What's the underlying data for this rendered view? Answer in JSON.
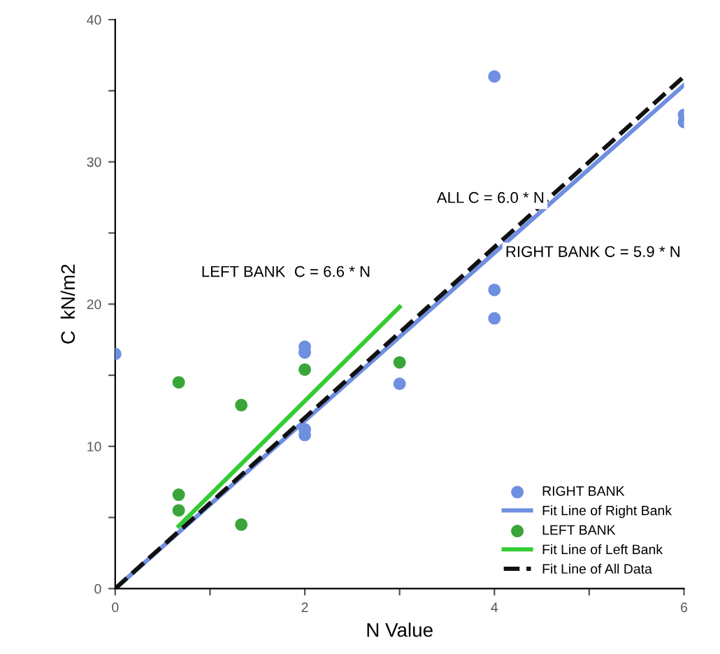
{
  "chart_data": {
    "type": "scatter",
    "xlabel": "N Value",
    "ylabel": "C  kN/m2",
    "xlim": [
      0,
      6
    ],
    "ylim": [
      0,
      40
    ],
    "xticks": [
      0,
      {
        "value": 1,
        "label": null
      },
      2,
      {
        "value": 3,
        "label": null
      },
      4,
      {
        "value": 5,
        "label": null
      },
      6
    ],
    "yticks": [
      0,
      {
        "value": 5,
        "label": null
      },
      10,
      {
        "value": 15,
        "label": null
      },
      20,
      {
        "value": 25,
        "label": null
      },
      30,
      {
        "value": 35,
        "label": null
      },
      40
    ],
    "grid": false,
    "legend": "bottom right",
    "series": [
      {
        "name": "RIGHT BANK",
        "color": "#6f8fe0",
        "marker": "circle",
        "x": [
          0,
          2,
          2,
          2,
          2,
          3,
          4,
          4,
          4,
          6,
          6
        ],
        "values": [
          16.5,
          17.0,
          16.6,
          11.2,
          10.8,
          14.4,
          36.0,
          21.0,
          19.0,
          33.3,
          32.8
        ]
      },
      {
        "name": "Fit Line of Right Bank",
        "type": "line",
        "color": "#6f8fe0",
        "line_style": "solid",
        "marker": "none",
        "x": [
          0,
          6
        ],
        "values": [
          0,
          35.4
        ]
      },
      {
        "name": "LEFT BANK",
        "color": "#3aa63a",
        "marker": "circle",
        "x": [
          0.67,
          0.67,
          0.67,
          1.33,
          1.33,
          2,
          3
        ],
        "values": [
          14.5,
          6.6,
          5.5,
          12.9,
          4.5,
          15.4,
          15.9
        ]
      },
      {
        "name": "Fit Line of Left Bank",
        "type": "line",
        "color": "#33cc33",
        "line_style": "solid",
        "marker": "none",
        "x": [
          0.67,
          3
        ],
        "values": [
          4.4,
          19.8
        ]
      },
      {
        "name": "Fit Line of All Data",
        "type": "line",
        "color": "#111111",
        "line_style": "dashed",
        "marker": "none",
        "x": [
          0,
          6
        ],
        "values": [
          0,
          36
        ]
      }
    ],
    "annotations": [
      "LEFT BANK  C = 6.6 * N",
      "ALL C = 6.0 * N",
      "RIGHT BANK C = 5.9 * N"
    ]
  }
}
